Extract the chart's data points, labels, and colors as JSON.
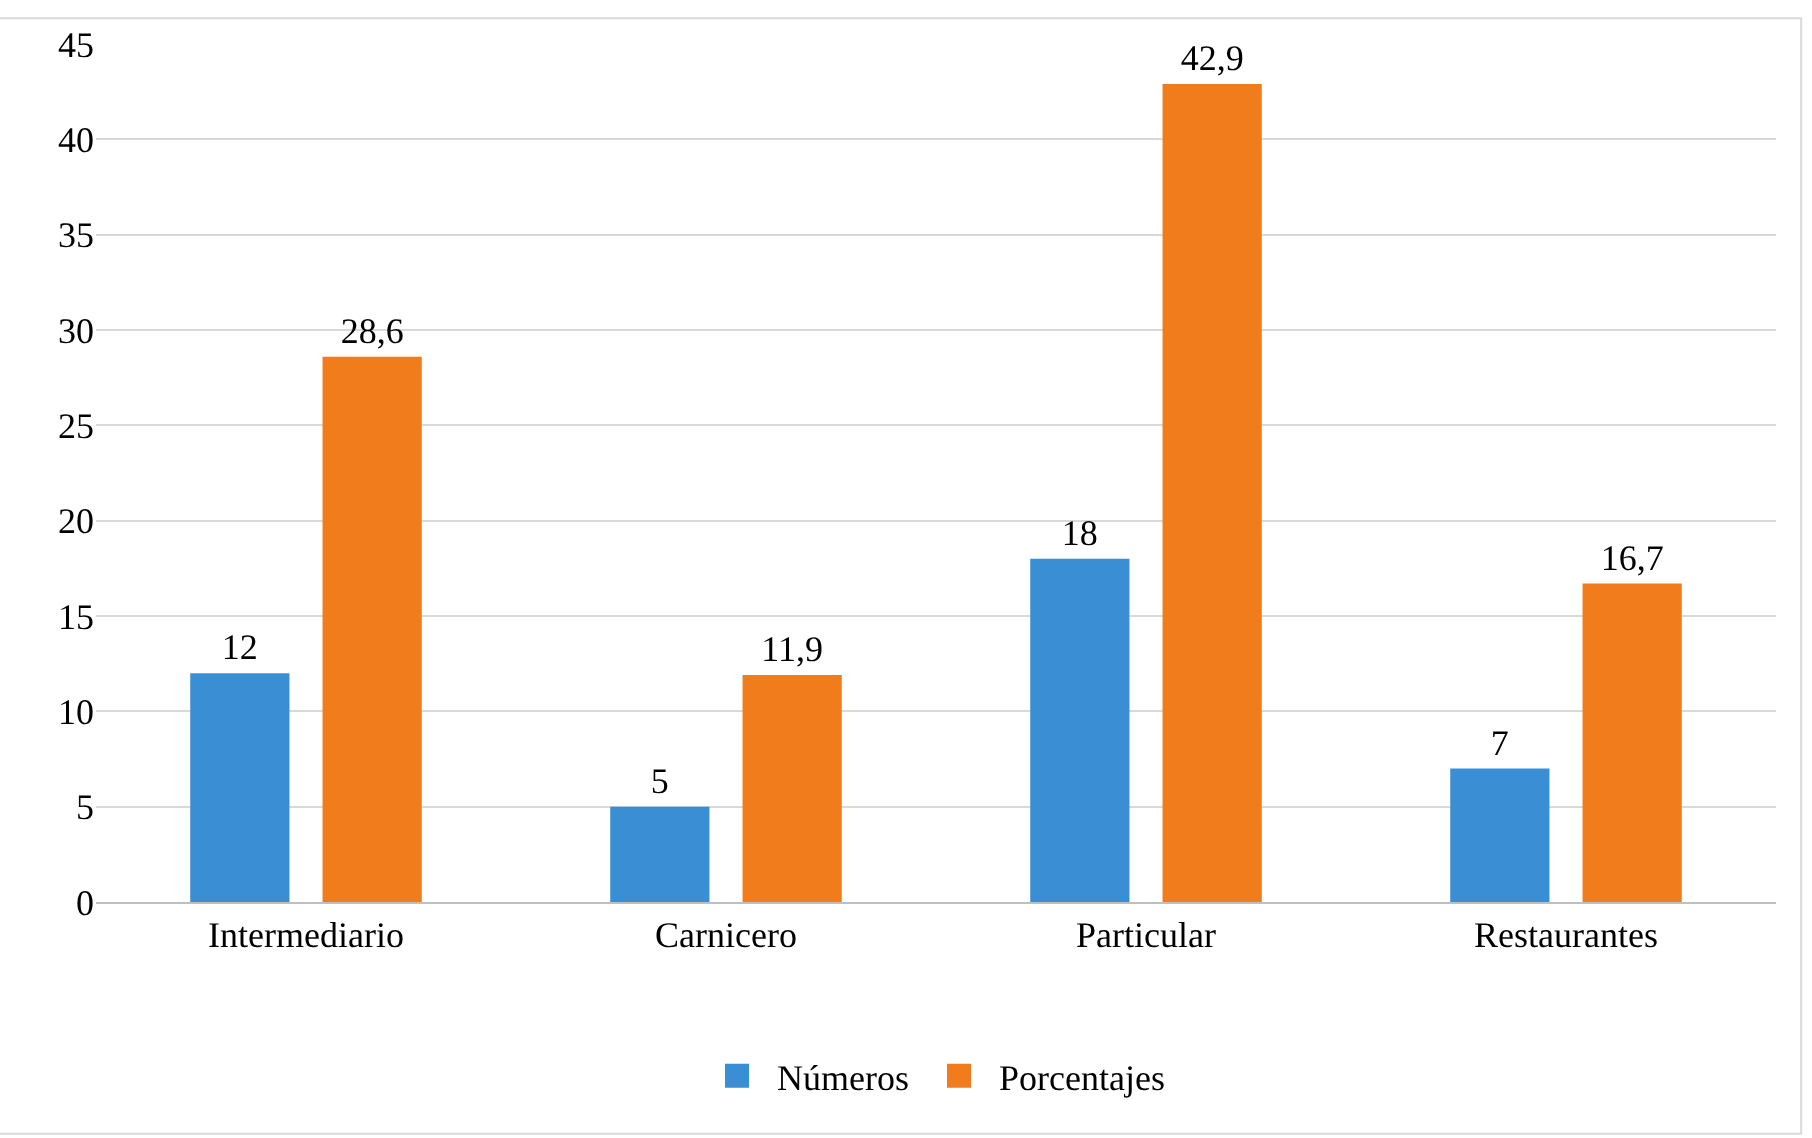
{
  "chart_data": {
    "type": "bar",
    "categories": [
      "Intermediario",
      "Carnicero",
      "Particular",
      "Restaurantes"
    ],
    "series": [
      {
        "name": "Números",
        "color": "#3a8ed4",
        "values": [
          12,
          5,
          18,
          7
        ],
        "value_labels": [
          "12",
          "5",
          "18",
          "7"
        ]
      },
      {
        "name": "Porcentajes",
        "color": "#f07c1c",
        "values": [
          28.6,
          11.9,
          42.9,
          16.7
        ],
        "value_labels": [
          "28,6",
          "11,9",
          "42,9",
          "16,7"
        ]
      }
    ],
    "ylim": [
      0,
      45
    ],
    "yticks": [
      0,
      5,
      10,
      15,
      20,
      25,
      30,
      35,
      40,
      45
    ],
    "grid": "y",
    "legend": "bottom"
  }
}
